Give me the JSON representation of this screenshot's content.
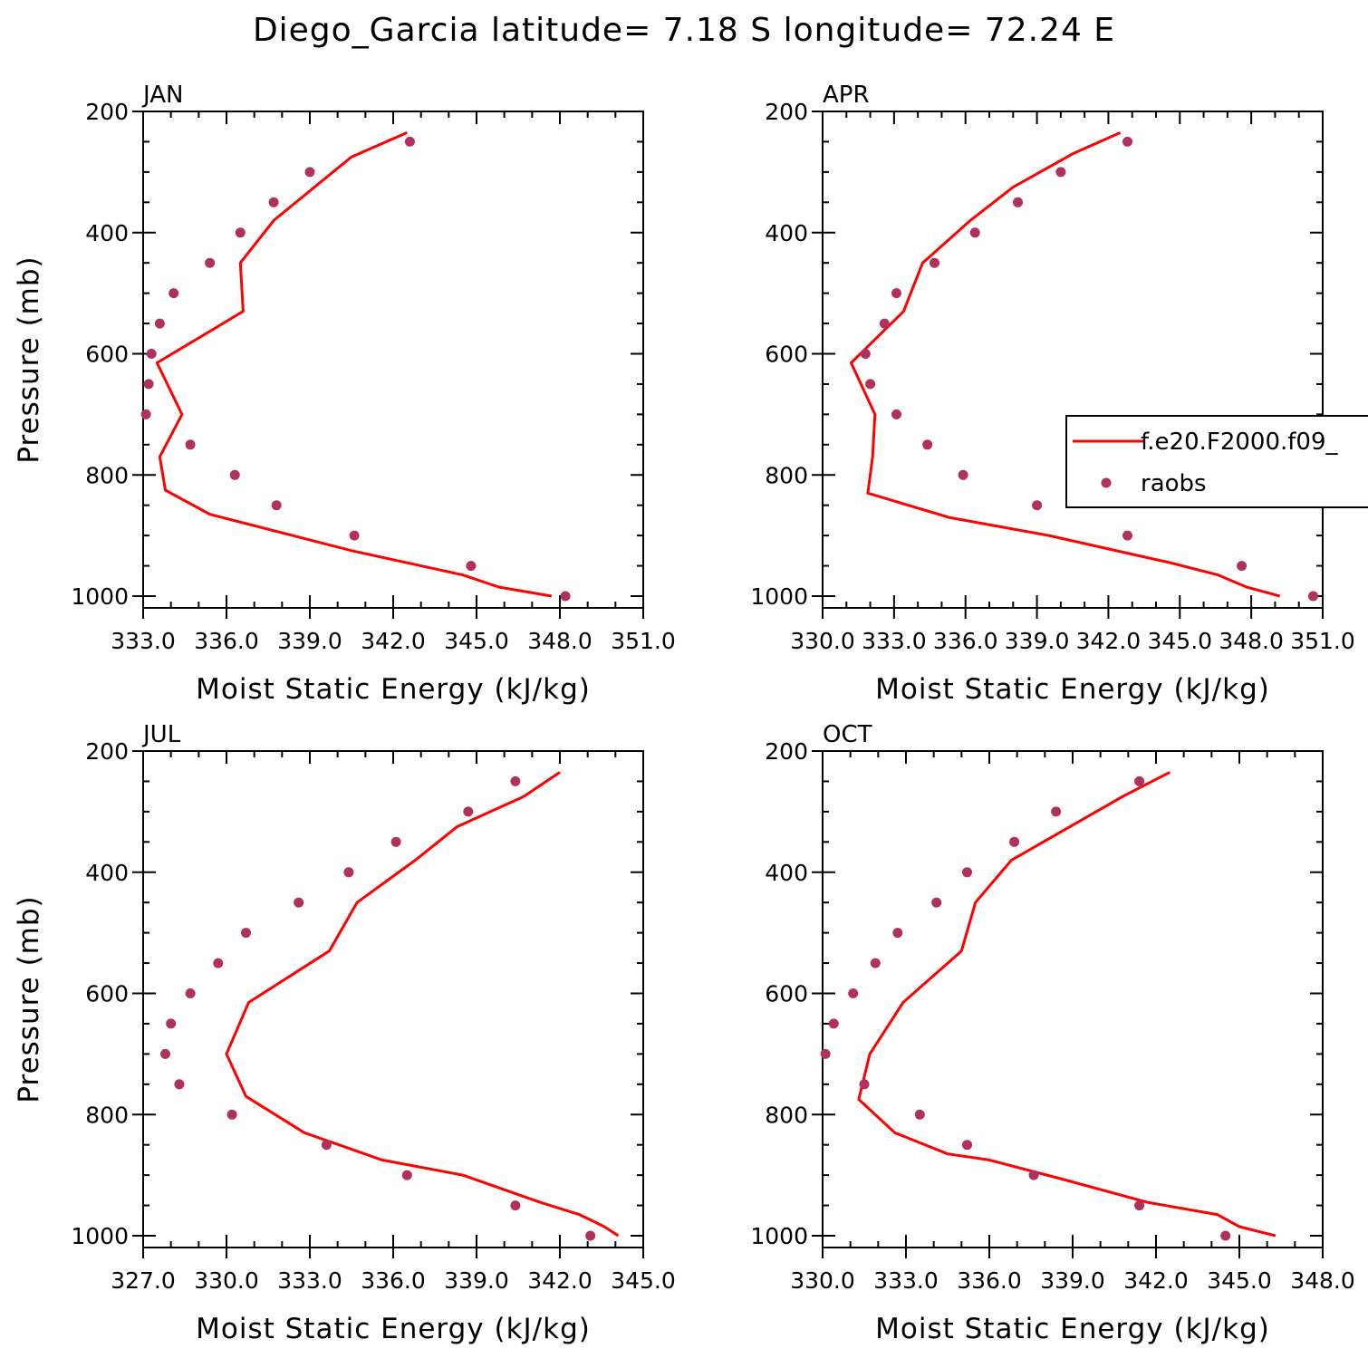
{
  "figure": {
    "title": "Diego_Garcia  latitude= 7.18 S longitude= 72.24 E"
  },
  "colors": {
    "model_line": "#ff0000",
    "obs_marker": "#b03060",
    "axis": "#000000"
  },
  "legend": {
    "items": [
      {
        "label": "f.e20.F2000.f09_",
        "style": "line"
      },
      {
        "label": "raobs",
        "style": "marker"
      }
    ]
  },
  "chart_data": [
    {
      "type": "line",
      "panel": "JAN",
      "xlabel": "Moist Static Energy (kJ/kg)",
      "ylabel": "Pressure (mb)",
      "xlim": [
        333.0,
        351.0
      ],
      "ylim": [
        1000,
        200
      ],
      "xticks": [
        333.0,
        336.0,
        339.0,
        342.0,
        345.0,
        348.0,
        351.0
      ],
      "xtick_labels": [
        "333.0",
        "336.0",
        "339.0",
        "342.0",
        "345.0",
        "348.0",
        "351.0"
      ],
      "yticks": [
        200,
        400,
        600,
        800,
        1000
      ],
      "ytick_labels": [
        "200",
        "400",
        "600",
        "800",
        "1000"
      ],
      "series": [
        {
          "name": "f.e20.F2000.f09_",
          "kind": "line",
          "x": [
            347.7,
            345.8,
            344.5,
            340.5,
            335.4,
            333.8,
            333.6,
            334.4,
            333.5,
            336.6,
            336.5,
            337.7,
            340.5,
            342.5
          ],
          "y": [
            1000,
            985,
            965,
            925,
            865,
            825,
            770,
            700,
            615,
            530,
            450,
            380,
            275,
            235
          ]
        },
        {
          "name": "raobs",
          "kind": "scatter",
          "x": [
            348.2,
            344.8,
            340.6,
            337.8,
            336.3,
            334.7,
            333.1,
            333.2,
            333.3,
            333.6,
            334.1,
            335.4,
            336.5,
            337.7,
            339.0,
            342.6
          ],
          "y": [
            1000,
            950,
            900,
            850,
            800,
            750,
            700,
            650,
            600,
            550,
            500,
            450,
            400,
            350,
            300,
            250
          ]
        }
      ]
    },
    {
      "type": "line",
      "panel": "APR",
      "xlabel": "Moist Static Energy (kJ/kg)",
      "ylabel": "",
      "xlim": [
        330.0,
        351.0
      ],
      "ylim": [
        1000,
        200
      ],
      "xticks": [
        330.0,
        333.0,
        336.0,
        339.0,
        342.0,
        345.0,
        348.0,
        351.0
      ],
      "xtick_labels": [
        "330.0",
        "333.0",
        "336.0",
        "339.0",
        "342.0",
        "345.0",
        "348.0",
        "351.0"
      ],
      "yticks": [
        200,
        400,
        600,
        800,
        1000
      ],
      "ytick_labels": [
        "200",
        "400",
        "600",
        "800",
        "1000"
      ],
      "series": [
        {
          "name": "f.e20.F2000.f09_",
          "kind": "line",
          "x": [
            349.2,
            347.8,
            346.6,
            344.6,
            339.5,
            335.3,
            331.9,
            332.1,
            332.2,
            331.2,
            333.4,
            334.2,
            336.2,
            338.0,
            340.5,
            342.5
          ],
          "y": [
            1000,
            985,
            965,
            945,
            900,
            870,
            830,
            770,
            700,
            615,
            530,
            450,
            380,
            325,
            270,
            235
          ]
        },
        {
          "name": "raobs",
          "kind": "scatter",
          "x": [
            350.6,
            347.6,
            342.8,
            339.0,
            335.9,
            334.4,
            333.1,
            332.0,
            331.8,
            332.6,
            333.1,
            334.7,
            336.4,
            338.2,
            340.0,
            342.8
          ],
          "y": [
            1000,
            950,
            900,
            850,
            800,
            750,
            700,
            650,
            600,
            550,
            500,
            450,
            400,
            350,
            300,
            250
          ]
        }
      ]
    },
    {
      "type": "line",
      "panel": "JUL",
      "xlabel": "Moist Static Energy (kJ/kg)",
      "ylabel": "Pressure (mb)",
      "xlim": [
        327.0,
        345.0
      ],
      "ylim": [
        1000,
        200
      ],
      "xticks": [
        327.0,
        330.0,
        333.0,
        336.0,
        339.0,
        342.0,
        345.0
      ],
      "xtick_labels": [
        "327.0",
        "330.0",
        "333.0",
        "336.0",
        "339.0",
        "342.0",
        "345.0"
      ],
      "yticks": [
        200,
        400,
        600,
        800,
        1000
      ],
      "ytick_labels": [
        "200",
        "400",
        "600",
        "800",
        "1000"
      ],
      "series": [
        {
          "name": "f.e20.F2000.f09_",
          "kind": "line",
          "x": [
            344.1,
            343.6,
            342.7,
            341.3,
            338.5,
            335.6,
            332.8,
            330.7,
            330.0,
            330.8,
            333.7,
            334.7,
            336.8,
            338.3,
            340.7,
            342.0
          ],
          "y": [
            1000,
            985,
            965,
            945,
            900,
            875,
            830,
            770,
            700,
            615,
            530,
            450,
            380,
            325,
            275,
            235
          ]
        },
        {
          "name": "raobs",
          "kind": "scatter",
          "x": [
            343.1,
            340.4,
            336.5,
            333.6,
            330.2,
            328.3,
            327.8,
            328.0,
            328.7,
            329.7,
            330.7,
            332.6,
            334.4,
            336.1,
            338.7,
            340.4
          ],
          "y": [
            1000,
            950,
            900,
            850,
            800,
            750,
            700,
            650,
            600,
            550,
            500,
            450,
            400,
            350,
            300,
            250
          ]
        }
      ]
    },
    {
      "type": "line",
      "panel": "OCT",
      "xlabel": "Moist Static Energy (kJ/kg)",
      "ylabel": "",
      "xlim": [
        330.0,
        348.0
      ],
      "ylim": [
        1000,
        200
      ],
      "xticks": [
        330.0,
        333.0,
        336.0,
        339.0,
        342.0,
        345.0,
        348.0
      ],
      "xtick_labels": [
        "330.0",
        "333.0",
        "336.0",
        "339.0",
        "342.0",
        "345.0",
        "348.0"
      ],
      "yticks": [
        200,
        400,
        600,
        800,
        1000
      ],
      "ytick_labels": [
        "200",
        "400",
        "600",
        "800",
        "1000"
      ],
      "series": [
        {
          "name": "f.e20.F2000.f09_",
          "kind": "line",
          "x": [
            346.3,
            345.0,
            344.2,
            341.7,
            338.5,
            336.0,
            334.5,
            332.6,
            331.3,
            331.7,
            332.9,
            335.0,
            335.5,
            336.8,
            338.9,
            340.8,
            342.5
          ],
          "y": [
            1000,
            985,
            965,
            945,
            905,
            875,
            865,
            830,
            775,
            700,
            615,
            530,
            450,
            380,
            325,
            275,
            235
          ]
        },
        {
          "name": "raobs",
          "kind": "scatter",
          "x": [
            344.5,
            341.4,
            337.6,
            335.2,
            333.5,
            331.5,
            330.1,
            330.4,
            331.1,
            331.9,
            332.7,
            334.1,
            335.2,
            336.9,
            338.4,
            341.4
          ],
          "y": [
            1000,
            950,
            900,
            850,
            800,
            750,
            700,
            650,
            600,
            550,
            500,
            450,
            400,
            350,
            300,
            250
          ]
        }
      ]
    }
  ]
}
